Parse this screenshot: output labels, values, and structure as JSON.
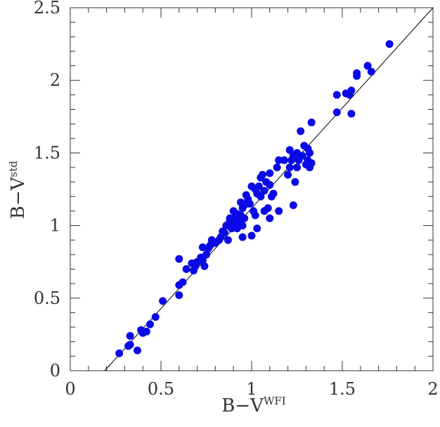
{
  "chart_data": {
    "type": "scatter",
    "xlabel": "B−V",
    "xlabel_sup": "WFI",
    "ylabel": "B−V",
    "ylabel_sup": "std",
    "xlim": [
      0,
      2
    ],
    "ylim": [
      0,
      2.5
    ],
    "x_ticks": [
      "0",
      "0.5",
      "1",
      "1.5",
      "2"
    ],
    "y_ticks": [
      "0",
      "0.5",
      "1",
      "1.5",
      "2",
      "2.5"
    ],
    "grid": false,
    "legend": "none",
    "point_color": "#0a0ae6",
    "reference_line": {
      "x": [
        0.19,
        2.0
      ],
      "y": [
        0.0,
        2.5
      ]
    },
    "series": [
      {
        "points": [
          [
            0.27,
            0.12
          ],
          [
            0.33,
            0.18
          ],
          [
            0.33,
            0.24
          ],
          [
            0.32,
            0.17
          ],
          [
            0.37,
            0.14
          ],
          [
            0.4,
            0.26
          ],
          [
            0.42,
            0.27
          ],
          [
            0.39,
            0.28
          ],
          [
            0.44,
            0.32
          ],
          [
            0.47,
            0.37
          ],
          [
            0.51,
            0.48
          ],
          [
            0.6,
            0.52
          ],
          [
            0.6,
            0.59
          ],
          [
            0.62,
            0.61
          ],
          [
            0.6,
            0.77
          ],
          [
            0.64,
            0.7
          ],
          [
            0.68,
            0.69
          ],
          [
            0.67,
            0.74
          ],
          [
            0.69,
            0.72
          ],
          [
            0.7,
            0.75
          ],
          [
            0.72,
            0.78
          ],
          [
            0.74,
            0.72
          ],
          [
            0.73,
            0.76
          ],
          [
            0.75,
            0.8
          ],
          [
            0.73,
            0.85
          ],
          [
            0.76,
            0.84
          ],
          [
            0.78,
            0.9
          ],
          [
            0.77,
            0.86
          ],
          [
            0.8,
            0.88
          ],
          [
            0.82,
            0.9
          ],
          [
            0.83,
            0.92
          ],
          [
            0.84,
            0.96
          ],
          [
            0.85,
            0.95
          ],
          [
            0.86,
            1.0
          ],
          [
            0.87,
            0.9
          ],
          [
            0.88,
            1.03
          ],
          [
            0.89,
            0.98
          ],
          [
            0.88,
            1.05
          ],
          [
            0.9,
            1.05
          ],
          [
            0.91,
            1.0
          ],
          [
            0.9,
            1.1
          ],
          [
            0.92,
            1.08
          ],
          [
            0.93,
            1.02
          ],
          [
            0.92,
            0.98
          ],
          [
            0.94,
            1.07
          ],
          [
            0.95,
            1.0
          ],
          [
            0.95,
            1.12
          ],
          [
            0.96,
            1.05
          ],
          [
            0.94,
            1.16
          ],
          [
            0.97,
            1.21
          ],
          [
            0.96,
            1.14
          ],
          [
            0.98,
            1.18
          ],
          [
            0.99,
            1.15
          ],
          [
            1.0,
            1.27
          ],
          [
            1.01,
            1.1
          ],
          [
            1.02,
            1.07
          ],
          [
            1.02,
            1.25
          ],
          [
            1.03,
            1.22
          ],
          [
            1.04,
            1.27
          ],
          [
            1.05,
            1.33
          ],
          [
            1.05,
            1.2
          ],
          [
            1.06,
            1.35
          ],
          [
            1.07,
            1.24
          ],
          [
            1.07,
            1.1
          ],
          [
            1.08,
            1.3
          ],
          [
            1.09,
            1.12
          ],
          [
            1.1,
            1.36
          ],
          [
            1.1,
            1.28
          ],
          [
            1.11,
            1.2
          ],
          [
            1.1,
            1.05
          ],
          [
            1.12,
            1.22
          ],
          [
            1.14,
            1.4
          ],
          [
            1.15,
            1.45
          ],
          [
            1.15,
            1.1
          ],
          [
            1.18,
            1.45
          ],
          [
            1.2,
            1.35
          ],
          [
            1.21,
            1.4
          ],
          [
            1.21,
            1.52
          ],
          [
            1.22,
            1.45
          ],
          [
            1.23,
            1.48
          ],
          [
            1.23,
            1.14
          ],
          [
            1.24,
            1.3
          ],
          [
            1.25,
            1.5
          ],
          [
            1.25,
            1.4
          ],
          [
            1.26,
            1.45
          ],
          [
            1.27,
            1.65
          ],
          [
            1.28,
            1.48
          ],
          [
            1.29,
            1.55
          ],
          [
            1.3,
            1.42
          ],
          [
            1.31,
            1.53
          ],
          [
            1.31,
            1.45
          ],
          [
            1.32,
            1.5
          ],
          [
            1.32,
            1.4
          ],
          [
            1.33,
            1.71
          ],
          [
            1.33,
            1.43
          ],
          [
            1.03,
            0.98
          ],
          [
            1.0,
            0.93
          ],
          [
            0.95,
            0.92
          ],
          [
            0.92,
            1.04
          ],
          [
            1.47,
            1.9
          ],
          [
            1.47,
            1.78
          ],
          [
            1.52,
            1.91
          ],
          [
            1.54,
            1.9
          ],
          [
            1.55,
            1.93
          ],
          [
            1.55,
            1.77
          ],
          [
            1.58,
            2.03
          ],
          [
            1.58,
            2.05
          ],
          [
            1.64,
            2.1
          ],
          [
            1.66,
            2.06
          ],
          [
            1.76,
            2.25
          ]
        ]
      }
    ]
  }
}
